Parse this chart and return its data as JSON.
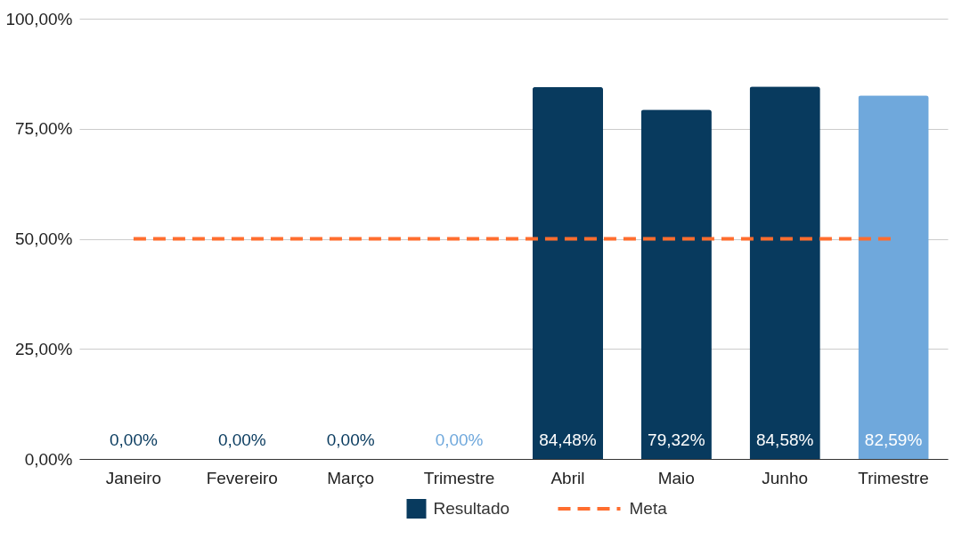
{
  "chart_data": {
    "type": "bar",
    "categories": [
      "Janeiro",
      "Fevereiro",
      "Março",
      "Trimestre",
      "Abril",
      "Maio",
      "Junho",
      "Trimestre"
    ],
    "series": [
      {
        "name": "Resultado",
        "color": "#083a5e",
        "colors": [
          "#083a5e",
          "#083a5e",
          "#083a5e",
          "#6fa8dc",
          "#083a5e",
          "#083a5e",
          "#083a5e",
          "#6fa8dc"
        ],
        "values": [
          0,
          0,
          0,
          0,
          84.48,
          79.32,
          84.58,
          82.59
        ],
        "value_labels": [
          "0,00%",
          "0,00%",
          "0,00%",
          "0,00%",
          "84,48%",
          "79,32%",
          "84,58%",
          "82,59%"
        ]
      },
      {
        "name": "Meta",
        "type": "line",
        "color": "#ff6d2e",
        "line_style": "dashed",
        "marker": "none",
        "values": [
          50,
          50,
          50,
          50,
          50,
          50,
          50,
          50
        ]
      }
    ],
    "ylim": [
      0,
      100
    ],
    "yticks": [
      {
        "value": 0,
        "label": "0,00%"
      },
      {
        "value": 25,
        "label": "25,00%"
      },
      {
        "value": 50,
        "label": "50,00%"
      },
      {
        "value": 75,
        "label": "75,00%"
      },
      {
        "value": 100,
        "label": "100,00%"
      }
    ],
    "grid": "y",
    "legend": "bottom"
  }
}
